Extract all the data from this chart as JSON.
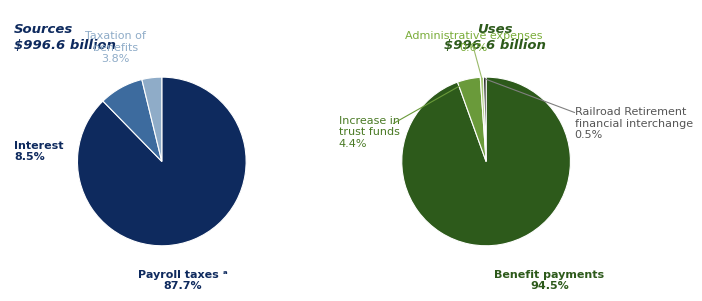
{
  "sources_title": "Sources\n$996.6 billion",
  "uses_title": "Uses\n$996.6 billion",
  "sources_values": [
    87.7,
    8.5,
    3.8
  ],
  "sources_colors": [
    "#0e2a5e",
    "#3d6b9e",
    "#8facc8"
  ],
  "uses_values": [
    94.5,
    4.4,
    0.6,
    0.5
  ],
  "uses_colors": [
    "#2d5a1b",
    "#6a9a3a",
    "#a8c87a",
    "#111111"
  ],
  "title_color_sources": "#0e2a5e",
  "title_color_uses": "#2d5a1b",
  "src_payroll_label": "Payroll taxes ᵃ\n87.7%",
  "src_interest_label": "Interest\n8.5%",
  "src_taxation_label": "Taxation of\nbenefits\n3.8%",
  "uses_benefit_label": "Benefit payments\n94.5%",
  "uses_trust_label": "Increase in\ntrust funds\n4.4%",
  "uses_admin_label": "Administrative expenses\n0.6%",
  "uses_railroad_label": "Railroad Retirement\nfinancial interchange\n0.5%",
  "src_payroll_color": "#0e2a5e",
  "src_interest_color": "#0e2a5e",
  "src_taxation_color": "#8facc8",
  "uses_benefit_color": "#2d5a1b",
  "uses_trust_color": "#4a7a25",
  "uses_admin_color": "#7aad3a",
  "uses_railroad_color": "#555555",
  "bg_color": "#ffffff"
}
